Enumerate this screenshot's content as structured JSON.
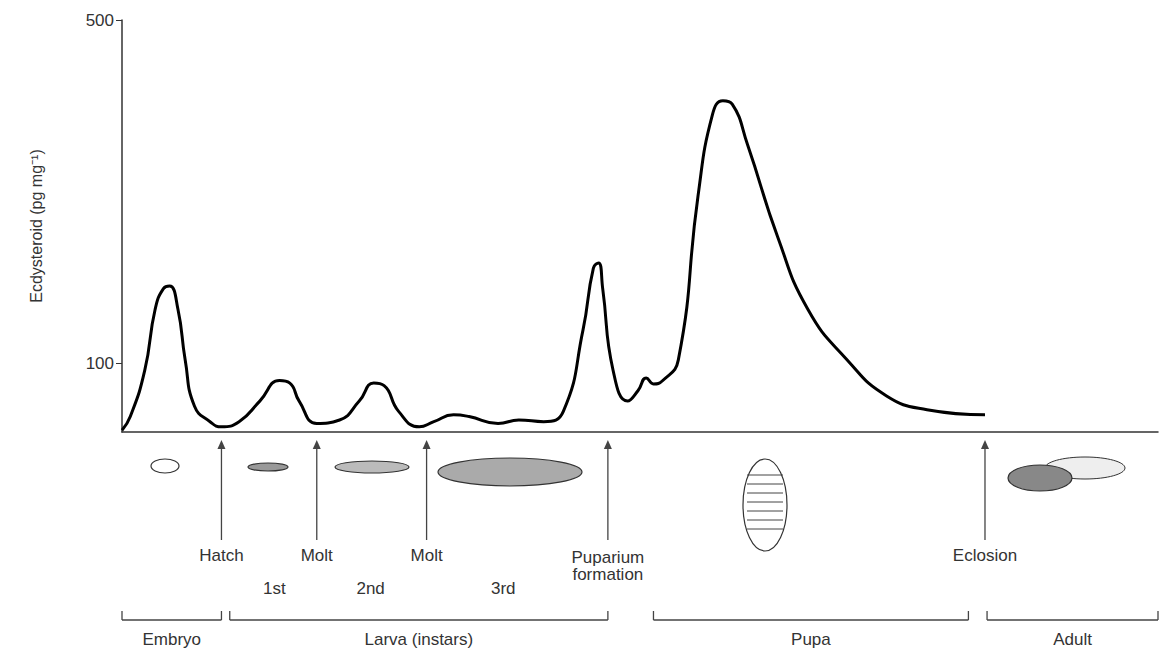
{
  "chart_data": {
    "type": "line",
    "y_label": "Ecdysteroid (pg mg⁻¹)",
    "x": [
      0,
      0.8,
      2.2,
      3.2,
      4.0,
      4.6,
      5.4,
      6.1,
      7.0,
      8.5,
      9.6,
      11.3,
      13.3,
      15.2,
      16.2,
      17.1,
      18.8,
      21.0,
      22.9,
      24.3,
      25.3,
      26.7,
      28.7,
      30.1,
      32.0,
      33.5,
      36.3,
      38.3,
      40.7,
      42.6,
      44.5,
      45.5,
      46.0,
      46.4,
      47.4,
      48.8,
      49.8,
      50.6,
      51.3,
      52.2,
      53.7,
      55.6,
      57.0,
      58.0,
      58.9,
      60.4,
      63.3,
      66.2,
      70.0,
      73.8,
      77.7,
      83.3
    ],
    "values": [
      22,
      38,
      92,
      163,
      187,
      190,
      163,
      104,
      50,
      32,
      26,
      32,
      56,
      80,
      77,
      56,
      30,
      34,
      56,
      77,
      74,
      44,
      26,
      32,
      40,
      38,
      30,
      34,
      32,
      44,
      139,
      211,
      217,
      187,
      92,
      56,
      68,
      83,
      76,
      80,
      104,
      295,
      390,
      406,
      402,
      354,
      247,
      163,
      104,
      62,
      46,
      40
    ],
    "color": "#000000",
    "xlim": [
      0,
      100
    ],
    "ylim": [
      20,
      500
    ],
    "yticks": [
      100,
      500
    ],
    "tick_labels": "y",
    "grid": false,
    "events": [
      {
        "x": 9.6,
        "label": "Hatch"
      },
      {
        "x": 18.8,
        "label": "Molt"
      },
      {
        "x": 29.4,
        "label": "Molt"
      },
      {
        "x": 46.9,
        "label": "Puparium formation"
      },
      {
        "x": 83.3,
        "label": "Eclosion"
      }
    ],
    "instars": [
      {
        "x": 14.7,
        "label": "1st"
      },
      {
        "x": 24.0,
        "label": "2nd"
      },
      {
        "x": 36.8,
        "label": "3rd"
      }
    ],
    "stages": [
      {
        "start": 0,
        "end": 9.6,
        "label": "Embryo"
      },
      {
        "start": 10.4,
        "end": 46.9,
        "label": "Larva (instars)"
      },
      {
        "start": 51.3,
        "end": 81.7,
        "label": "Pupa"
      },
      {
        "start": 83.5,
        "end": 100,
        "label": "Adult"
      }
    ]
  }
}
